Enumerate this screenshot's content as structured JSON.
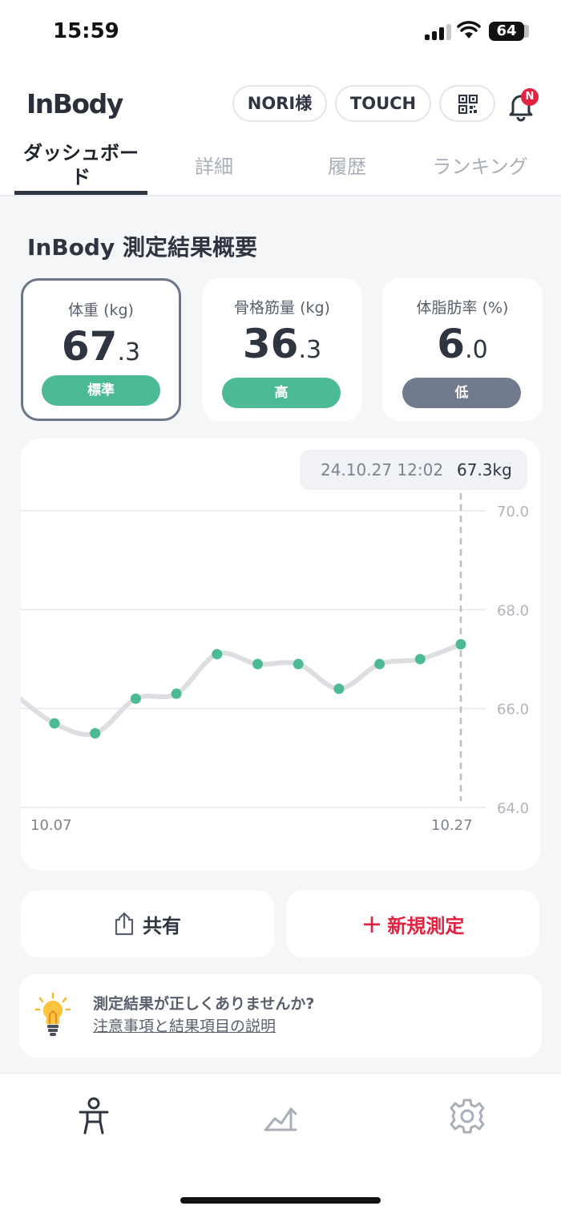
{
  "status_bar": {
    "time": "15:59",
    "battery": "64"
  },
  "header": {
    "logo": "InBody",
    "user_pill": "NORI様",
    "touch_pill": "TOUCH",
    "notification_badge": "N",
    "icons": [
      "qr-code-icon",
      "bell-icon"
    ]
  },
  "tabs": [
    {
      "label": "ダッシュボード",
      "active": true
    },
    {
      "label": "詳細",
      "active": false
    },
    {
      "label": "履歴",
      "active": false
    },
    {
      "label": "ランキング",
      "active": false
    }
  ],
  "main": {
    "section_title": "InBody 測定結果概要",
    "metrics": [
      {
        "label": "体重 (kg)",
        "int": "67",
        "dec": ".3",
        "badge": "標準",
        "badge_color": "#4cba95",
        "selected": true
      },
      {
        "label": "骨格筋量 (kg)",
        "int": "36",
        "dec": ".3",
        "badge": "高",
        "badge_color": "#4cba95",
        "selected": false
      },
      {
        "label": "体脂肪率 (%)",
        "int": "6",
        "dec": ".0",
        "badge": "低",
        "badge_color": "#6f7a8c",
        "selected": false
      }
    ],
    "tooltip": {
      "date": "24.10.27 12:02",
      "value": "67.3kg"
    },
    "actions": {
      "share_label": "共有",
      "new_label": "新規測定"
    },
    "notice": {
      "title": "測定結果が正しくありませんか?",
      "link": "注意事項と結果項目の説明"
    }
  },
  "chart_data": {
    "type": "line",
    "series": [
      {
        "values": [
          66.3,
          65.7,
          65.5,
          66.2,
          66.3,
          67.1,
          66.9,
          66.9,
          66.4,
          66.9,
          67.0,
          67.3
        ]
      }
    ],
    "x_index_offset": -1,
    "x_ticks": [
      "10.07",
      "10.27"
    ],
    "y_ticks": [
      "70.0",
      "68.0",
      "66.0",
      "64.0"
    ],
    "ylim": [
      64,
      70
    ],
    "line_color": "#dcdee2",
    "point_color": "#4cba95"
  },
  "bottom_nav": {
    "items": [
      "body-icon",
      "trend-chart-icon",
      "settings-gear-icon"
    ]
  }
}
